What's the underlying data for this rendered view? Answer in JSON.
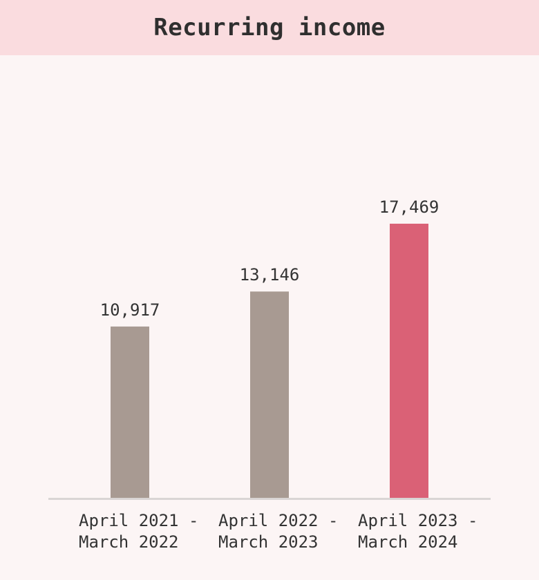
{
  "header": {
    "title": "Recurring income"
  },
  "chart_data": {
    "type": "bar",
    "title": "Recurring income",
    "categories": [
      [
        "April 2021 -",
        "March 2022"
      ],
      [
        "April 2022 -",
        "March 2023"
      ],
      [
        "April 2023 -",
        "March 2024"
      ]
    ],
    "values": [
      10917,
      13146,
      17469
    ],
    "value_labels": [
      "10,917",
      "13,146",
      "17,469"
    ],
    "ylim": [
      0,
      22000
    ],
    "grid": false,
    "colors": [
      "#a89a92",
      "#a89a92",
      "#da6176"
    ],
    "baseline_color": "#d9d5d4"
  }
}
